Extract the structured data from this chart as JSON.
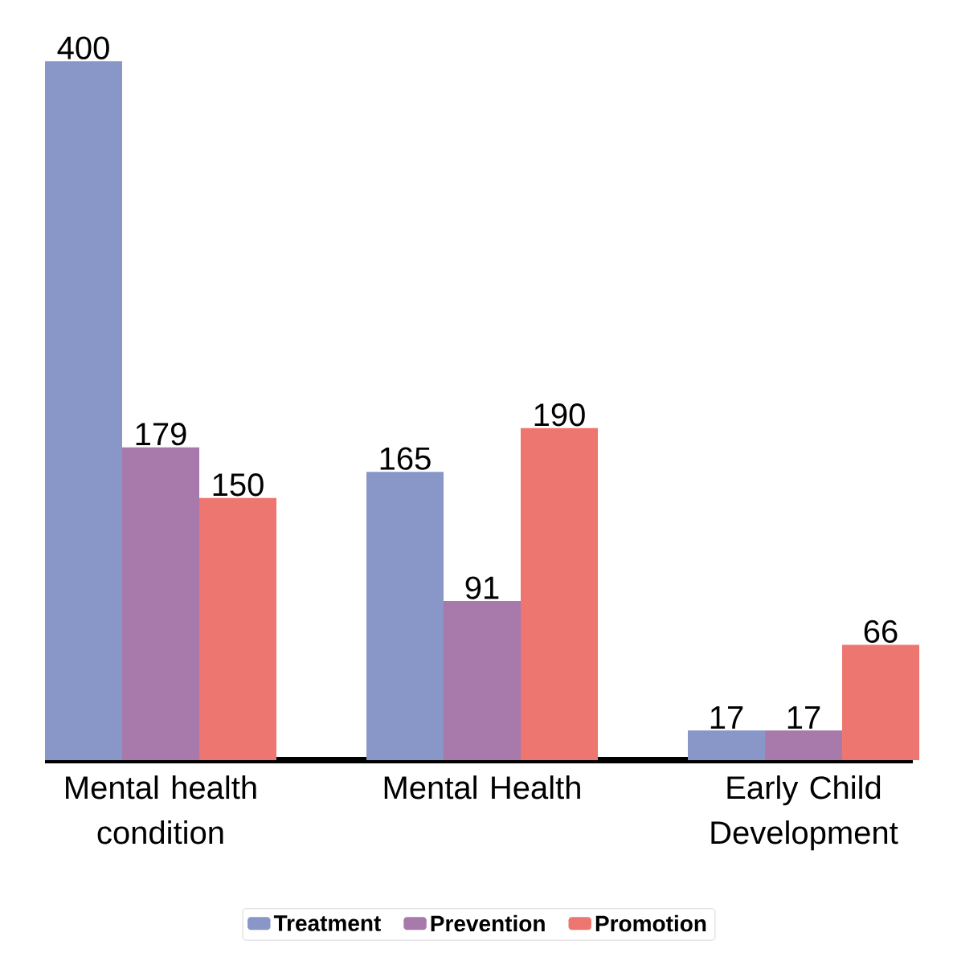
{
  "chart_data": {
    "type": "bar",
    "categories": [
      "Mental health condition",
      "Mental Health",
      "Early Child Development"
    ],
    "series": [
      {
        "name": "Treatment",
        "color": "#8896c8",
        "values": [
          400,
          165,
          17
        ]
      },
      {
        "name": "Prevention",
        "color": "#a77aab",
        "values": [
          179,
          91,
          17
        ]
      },
      {
        "name": "Promotion",
        "color": "#ee7670",
        "values": [
          150,
          190,
          66
        ]
      }
    ],
    "data_labels": true,
    "legend": "bottom"
  }
}
